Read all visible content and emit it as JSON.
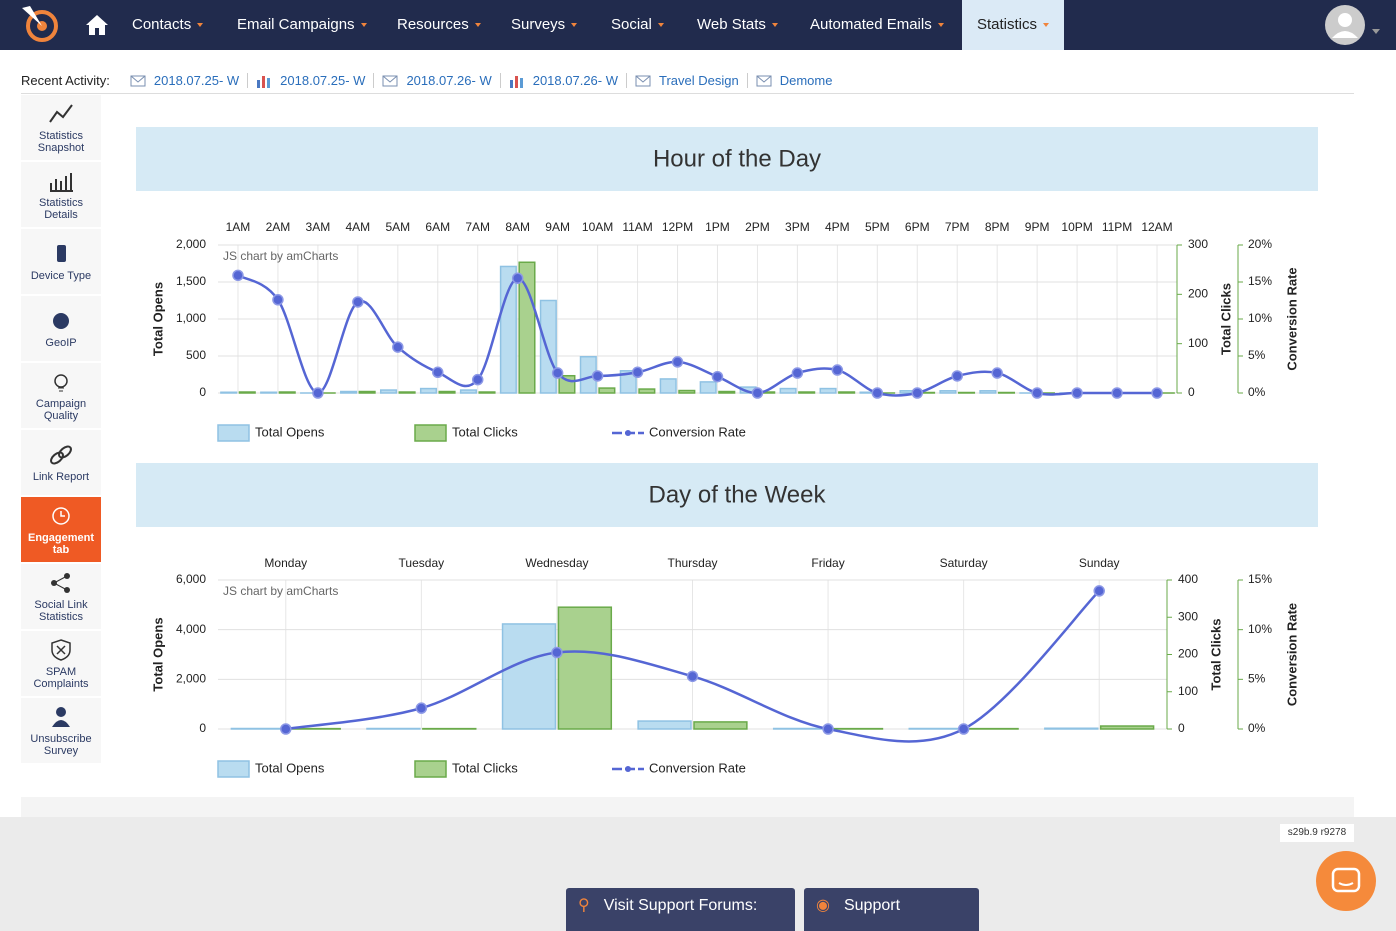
{
  "nav": {
    "items": [
      "Contacts",
      "Email Campaigns",
      "Resources",
      "Surveys",
      "Social",
      "Web Stats",
      "Automated Emails",
      "Statistics"
    ]
  },
  "recent_activity": {
    "label": "Recent Activity:",
    "items": [
      "2018.07.25- W",
      "2018.07.25- W",
      "2018.07.26- W",
      "2018.07.26- W",
      "Travel Design",
      "Demome"
    ]
  },
  "sidebar": [
    "Statistics Snapshot",
    "Statistics Details",
    "Device Type",
    "GeoIP",
    "Campaign Quality",
    "Link Report",
    "Engagement tab",
    "Social Link Statistics",
    "SPAM Complaints",
    "Unsubscribe Survey"
  ],
  "chart_data": [
    {
      "type": "bar",
      "title": "Hour of the Day",
      "watermark": "JS chart by amCharts",
      "grid": true,
      "categories": [
        "1AM",
        "2AM",
        "3AM",
        "4AM",
        "5AM",
        "6AM",
        "7AM",
        "8AM",
        "9AM",
        "10AM",
        "11AM",
        "12PM",
        "1PM",
        "2PM",
        "3PM",
        "4PM",
        "5PM",
        "6PM",
        "7PM",
        "8PM",
        "9PM",
        "10PM",
        "11PM",
        "12AM"
      ],
      "y_label": "Total Opens",
      "ylim": [
        0,
        2000
      ],
      "yticks": [
        0,
        500,
        {
          "value": 1000,
          "label": "1,000"
        },
        {
          "value": 1500,
          "label": "1,500"
        },
        {
          "value": 2000,
          "label": "2,000"
        }
      ],
      "y2_label": "Total Clicks",
      "y2lim": [
        0,
        300
      ],
      "y2ticks": [
        0,
        100,
        200,
        300
      ],
      "y3_label": "Conversion Rate",
      "y3lim": [
        0,
        20
      ],
      "y3ticks": [
        {
          "value": 0,
          "label": "0%"
        },
        {
          "value": 5,
          "label": "5%"
        },
        {
          "value": 10,
          "label": "10%"
        },
        {
          "value": 15,
          "label": "15%"
        },
        {
          "value": 20,
          "label": "20%"
        }
      ],
      "series": [
        {
          "name": "Total Opens",
          "type": "bar",
          "color": "#b9dcf0",
          "values": [
            10,
            10,
            0,
            20,
            40,
            60,
            40,
            1710,
            1250,
            490,
            300,
            190,
            150,
            80,
            60,
            60,
            10,
            30,
            30,
            30,
            0,
            0,
            0,
            0
          ]
        },
        {
          "name": "Total Clicks",
          "type": "bar",
          "axis": "y2",
          "color": "#a9d18e",
          "values": [
            2,
            2,
            0,
            3,
            2,
            3,
            2,
            265,
            35,
            10,
            8,
            5,
            3,
            2,
            2,
            2,
            0,
            1,
            1,
            1,
            0,
            0,
            0,
            0
          ]
        },
        {
          "name": "Conversion Rate",
          "type": "line",
          "axis": "y3",
          "color": "#5566d4",
          "values": [
            15.9,
            12.6,
            0,
            12.3,
            6.2,
            2.8,
            1.8,
            15.5,
            2.7,
            2.3,
            2.8,
            4.2,
            2.2,
            0,
            2.7,
            3.1,
            0,
            0,
            2.3,
            2.7,
            0,
            0,
            0,
            0
          ]
        }
      ]
    },
    {
      "type": "bar",
      "title": "Day of the Week",
      "watermark": "JS chart by amCharts",
      "grid": true,
      "categories": [
        "Monday",
        "Tuesday",
        "Wednesday",
        "Thursday",
        "Friday",
        "Saturday",
        "Sunday"
      ],
      "y_label": "Total Opens",
      "ylim": [
        0,
        6000
      ],
      "yticks": [
        0,
        {
          "value": 2000,
          "label": "2,000"
        },
        {
          "value": 4000,
          "label": "4,000"
        },
        {
          "value": 6000,
          "label": "6,000"
        }
      ],
      "y2_label": "Total Clicks",
      "y2lim": [
        0,
        400
      ],
      "y2ticks": [
        0,
        100,
        200,
        300,
        400
      ],
      "y3_label": "Conversion Rate",
      "y3lim": [
        0,
        15
      ],
      "y3ticks": [
        {
          "value": 0,
          "label": "0%"
        },
        {
          "value": 5,
          "label": "5%"
        },
        {
          "value": 10,
          "label": "10%"
        },
        {
          "value": 15,
          "label": "15%"
        }
      ],
      "series": [
        {
          "name": "Total Opens",
          "type": "bar",
          "color": "#b9dcf0",
          "values": [
            20,
            20,
            4230,
            320,
            20,
            20,
            30
          ]
        },
        {
          "name": "Total Clicks",
          "type": "bar",
          "axis": "y2",
          "color": "#a9d18e",
          "values": [
            1,
            1,
            327,
            19,
            1,
            1,
            8
          ]
        },
        {
          "name": "Conversion Rate",
          "type": "line",
          "axis": "y3",
          "color": "#5566d4",
          "values": [
            0,
            2.1,
            7.7,
            5.3,
            0,
            0,
            13.9
          ]
        }
      ]
    }
  ],
  "version": "s29b.9 r9278",
  "footer": {
    "forums": "Visit Support Forums:",
    "support": "Support"
  }
}
